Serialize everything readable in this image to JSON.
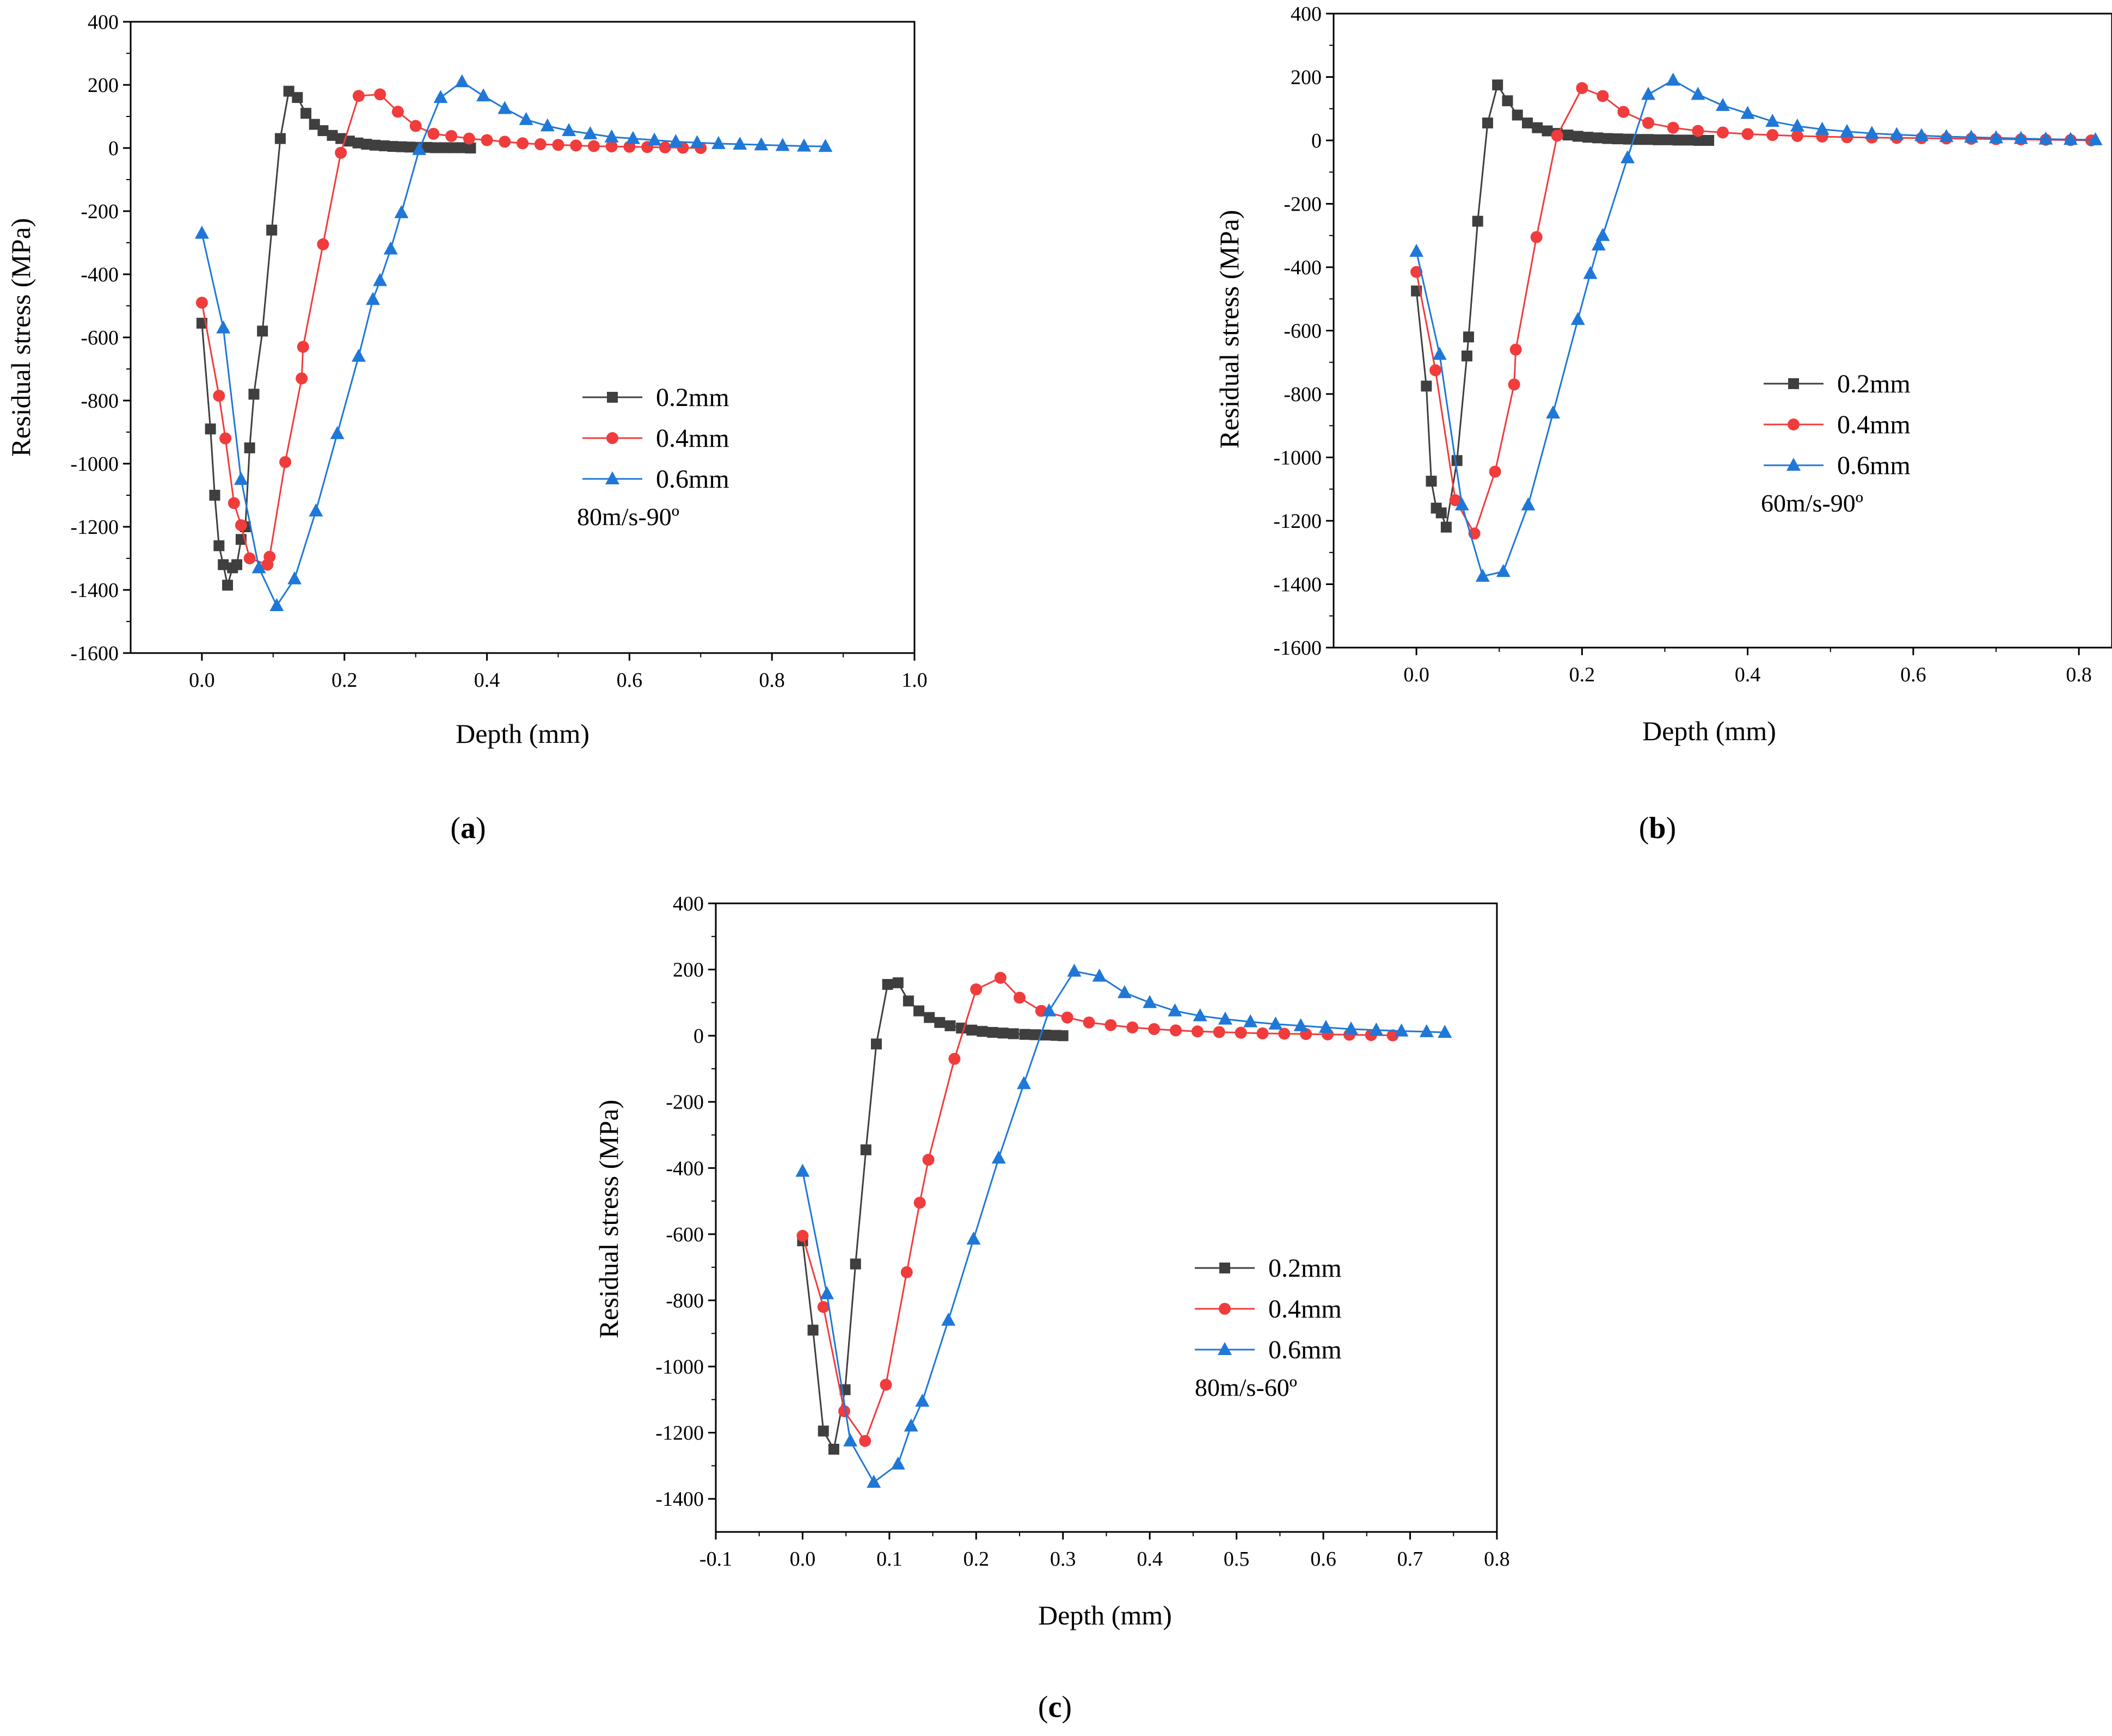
{
  "chart_data": [
    {
      "id": "a",
      "type": "line",
      "panel_label": "a",
      "xlabel": "Depth (mm)",
      "ylabel": "Residual stress (MPa)",
      "xlim": [
        -0.1,
        1.0
      ],
      "ylim": [
        -1600,
        400
      ],
      "xticks": [
        0.0,
        0.2,
        0.4,
        0.6,
        0.8,
        1.0
      ],
      "xtick_labels": [
        "0.0",
        "0.2",
        "0.4",
        "0.6",
        "0.8",
        "1.0"
      ],
      "yticks": [
        -1600,
        -1400,
        -1200,
        -1000,
        -800,
        -600,
        -400,
        -200,
        0,
        200,
        400
      ],
      "ytick_labels": [
        "-1600",
        "-1400",
        "-1200",
        "-1000",
        "-800",
        "-600",
        "-400",
        "-200",
        "0",
        "200",
        "400"
      ],
      "annotation": "80m/s-90º",
      "legend_position": "center-right",
      "grid": false,
      "series": [
        {
          "name": "0.2mm",
          "marker": "square",
          "color": "#3f3f3f",
          "x": [
            0.0,
            0.012,
            0.018,
            0.024,
            0.03,
            0.036,
            0.043,
            0.049,
            0.055,
            0.061,
            0.067,
            0.073,
            0.085,
            0.098,
            0.11,
            0.122,
            0.134,
            0.146,
            0.158,
            0.17,
            0.183,
            0.195,
            0.207,
            0.219,
            0.231,
            0.243,
            0.256,
            0.268,
            0.28,
            0.292,
            0.304,
            0.316,
            0.328,
            0.341,
            0.353,
            0.365,
            0.377
          ],
          "y": [
            -555,
            -890,
            -1100,
            -1260,
            -1320,
            -1385,
            -1330,
            -1320,
            -1240,
            -1200,
            -950,
            -780,
            -580,
            -260,
            30,
            180,
            160,
            110,
            75,
            55,
            40,
            30,
            22,
            16,
            12,
            9,
            7,
            5,
            4,
            3,
            2,
            2,
            1,
            1,
            1,
            1,
            0
          ]
        },
        {
          "name": "0.4mm",
          "marker": "circle",
          "color": "#f03c3c",
          "x": [
            0.0,
            0.024,
            0.033,
            0.045,
            0.055,
            0.067,
            0.092,
            0.095,
            0.117,
            0.14,
            0.142,
            0.17,
            0.195,
            0.22,
            0.25,
            0.275,
            0.3,
            0.325,
            0.35,
            0.375,
            0.4,
            0.425,
            0.45,
            0.475,
            0.5,
            0.525,
            0.55,
            0.575,
            0.6,
            0.625,
            0.65,
            0.675,
            0.7
          ],
          "y": [
            -490,
            -785,
            -920,
            -1125,
            -1195,
            -1300,
            -1320,
            -1295,
            -995,
            -730,
            -630,
            -305,
            -15,
            165,
            170,
            115,
            70,
            45,
            38,
            30,
            25,
            20,
            15,
            12,
            10,
            8,
            6,
            5,
            4,
            3,
            2,
            1,
            0
          ]
        },
        {
          "name": "0.6mm",
          "marker": "triangle",
          "color": "#1f78d7",
          "x": [
            0.0,
            0.03,
            0.055,
            0.08,
            0.105,
            0.13,
            0.16,
            0.19,
            0.22,
            0.24,
            0.25,
            0.265,
            0.28,
            0.305,
            0.335,
            0.365,
            0.395,
            0.425,
            0.455,
            0.485,
            0.515,
            0.545,
            0.575,
            0.605,
            0.635,
            0.665,
            0.695,
            0.725,
            0.755,
            0.785,
            0.815,
            0.845,
            0.875
          ],
          "y": [
            -270,
            -570,
            -1050,
            -1330,
            -1450,
            -1365,
            -1150,
            -905,
            -660,
            -480,
            -420,
            -320,
            -205,
            -5,
            160,
            210,
            165,
            125,
            90,
            70,
            55,
            45,
            35,
            30,
            25,
            20,
            17,
            14,
            12,
            10,
            8,
            6,
            5
          ]
        }
      ]
    },
    {
      "id": "b",
      "type": "line",
      "panel_label": "b",
      "xlabel": "Depth (mm)",
      "ylabel": "Residual stress (MPa)",
      "xlim": [
        -0.1,
        0.84
      ],
      "ylim": [
        -1600,
        400
      ],
      "xticks": [
        0.0,
        0.2,
        0.4,
        0.6,
        0.8
      ],
      "xtick_labels": [
        "0.0",
        "0.2",
        "0.4",
        "0.6",
        "0.8"
      ],
      "yticks": [
        -1600,
        -1400,
        -1200,
        -1000,
        -800,
        -600,
        -400,
        -200,
        0,
        200,
        400
      ],
      "ytick_labels": [
        "-1600",
        "-1400",
        "-1200",
        "-1000",
        "-800",
        "-600",
        "-400",
        "-200",
        "0",
        "200",
        "400"
      ],
      "annotation": "60m/s-90º",
      "legend_position": "center-right",
      "grid": false,
      "series": [
        {
          "name": "0.2mm",
          "marker": "square",
          "color": "#3f3f3f",
          "x": [
            0.0,
            0.012,
            0.018,
            0.024,
            0.03,
            0.036,
            0.049,
            0.061,
            0.063,
            0.074,
            0.086,
            0.098,
            0.11,
            0.122,
            0.134,
            0.146,
            0.158,
            0.17,
            0.183,
            0.195,
            0.207,
            0.219,
            0.231,
            0.243,
            0.256,
            0.268,
            0.28,
            0.292,
            0.304,
            0.316,
            0.328,
            0.341,
            0.353
          ],
          "y": [
            -475,
            -775,
            -1075,
            -1160,
            -1175,
            -1220,
            -1010,
            -680,
            -620,
            -255,
            55,
            175,
            125,
            80,
            55,
            40,
            30,
            22,
            17,
            13,
            10,
            8,
            6,
            5,
            4,
            3,
            3,
            2,
            2,
            1,
            1,
            0,
            0
          ]
        },
        {
          "name": "0.4mm",
          "marker": "circle",
          "color": "#f03c3c",
          "x": [
            0.0,
            0.023,
            0.047,
            0.07,
            0.095,
            0.118,
            0.12,
            0.145,
            0.17,
            0.2,
            0.225,
            0.25,
            0.28,
            0.31,
            0.34,
            0.37,
            0.4,
            0.43,
            0.46,
            0.49,
            0.52,
            0.55,
            0.58,
            0.61,
            0.64,
            0.67,
            0.7,
            0.73,
            0.76,
            0.79,
            0.815
          ],
          "y": [
            -415,
            -725,
            -1135,
            -1240,
            -1045,
            -770,
            -660,
            -305,
            15,
            165,
            140,
            90,
            55,
            40,
            30,
            25,
            20,
            17,
            14,
            12,
            10,
            9,
            8,
            7,
            6,
            5,
            4,
            3,
            2,
            1,
            0
          ]
        },
        {
          "name": "0.6mm",
          "marker": "triangle",
          "color": "#1f78d7",
          "x": [
            0.0,
            0.028,
            0.055,
            0.08,
            0.105,
            0.135,
            0.165,
            0.195,
            0.21,
            0.22,
            0.225,
            0.255,
            0.28,
            0.31,
            0.34,
            0.37,
            0.4,
            0.43,
            0.46,
            0.49,
            0.52,
            0.55,
            0.58,
            0.61,
            0.64,
            0.67,
            0.7,
            0.73,
            0.76,
            0.79,
            0.82
          ],
          "y": [
            -350,
            -675,
            -1150,
            -1375,
            -1360,
            -1150,
            -860,
            -565,
            -420,
            -330,
            -300,
            -55,
            145,
            190,
            145,
            110,
            85,
            60,
            45,
            35,
            28,
            22,
            18,
            15,
            12,
            10,
            8,
            6,
            4,
            3,
            2
          ]
        }
      ]
    },
    {
      "id": "c",
      "type": "line",
      "panel_label": "c",
      "xlabel": "Depth (mm)",
      "ylabel": "Residual stress (MPa)",
      "xlim": [
        -0.1,
        0.8
      ],
      "ylim": [
        -1500,
        400
      ],
      "xticks": [
        -0.1,
        0.0,
        0.1,
        0.2,
        0.3,
        0.4,
        0.5,
        0.6,
        0.7,
        0.8
      ],
      "xtick_labels": [
        "-0.1",
        "0.0",
        "0.1",
        "0.2",
        "0.3",
        "0.4",
        "0.5",
        "0.6",
        "0.7",
        "0.8"
      ],
      "yticks": [
        -1400,
        -1200,
        -1000,
        -800,
        -600,
        -400,
        -200,
        0,
        200,
        400
      ],
      "ytick_labels": [
        "-1400",
        "-1200",
        "-1000",
        "-800",
        "-600",
        "-400",
        "-200",
        "0",
        "200",
        "400"
      ],
      "annotation": "80m/s-60º",
      "legend_position": "center-right",
      "grid": false,
      "series": [
        {
          "name": "0.2mm",
          "marker": "square",
          "color": "#3f3f3f",
          "x": [
            0.0,
            0.012,
            0.024,
            0.036,
            0.049,
            0.061,
            0.073,
            0.085,
            0.098,
            0.11,
            0.122,
            0.134,
            0.146,
            0.158,
            0.17,
            0.183,
            0.195,
            0.207,
            0.219,
            0.231,
            0.243,
            0.256,
            0.268,
            0.28,
            0.292,
            0.3
          ],
          "y": [
            -620,
            -890,
            -1195,
            -1250,
            -1070,
            -690,
            -345,
            -25,
            155,
            160,
            105,
            75,
            55,
            40,
            30,
            23,
            17,
            13,
            10,
            8,
            6,
            4,
            3,
            2,
            1,
            0
          ]
        },
        {
          "name": "0.4mm",
          "marker": "circle",
          "color": "#f03c3c",
          "x": [
            0.0,
            0.024,
            0.048,
            0.072,
            0.096,
            0.12,
            0.135,
            0.145,
            0.175,
            0.2,
            0.228,
            0.25,
            0.275,
            0.305,
            0.33,
            0.355,
            0.38,
            0.405,
            0.43,
            0.455,
            0.48,
            0.505,
            0.53,
            0.555,
            0.58,
            0.605,
            0.63,
            0.655,
            0.68
          ],
          "y": [
            -605,
            -820,
            -1135,
            -1225,
            -1055,
            -715,
            -505,
            -375,
            -70,
            140,
            175,
            115,
            75,
            55,
            40,
            32,
            25,
            20,
            16,
            13,
            11,
            9,
            7,
            6,
            5,
            4,
            3,
            2,
            1
          ]
        },
        {
          "name": "0.6mm",
          "marker": "triangle",
          "color": "#1f78d7",
          "x": [
            0.0,
            0.028,
            0.055,
            0.082,
            0.11,
            0.125,
            0.138,
            0.168,
            0.197,
            0.226,
            0.255,
            0.284,
            0.313,
            0.342,
            0.371,
            0.4,
            0.429,
            0.458,
            0.487,
            0.516,
            0.545,
            0.574,
            0.603,
            0.632,
            0.661,
            0.69,
            0.719,
            0.74
          ],
          "y": [
            -410,
            -780,
            -1225,
            -1350,
            -1295,
            -1180,
            -1105,
            -860,
            -615,
            -370,
            -145,
            75,
            195,
            180,
            130,
            100,
            75,
            60,
            50,
            42,
            35,
            30,
            25,
            20,
            17,
            14,
            12,
            10
          ]
        }
      ]
    }
  ]
}
